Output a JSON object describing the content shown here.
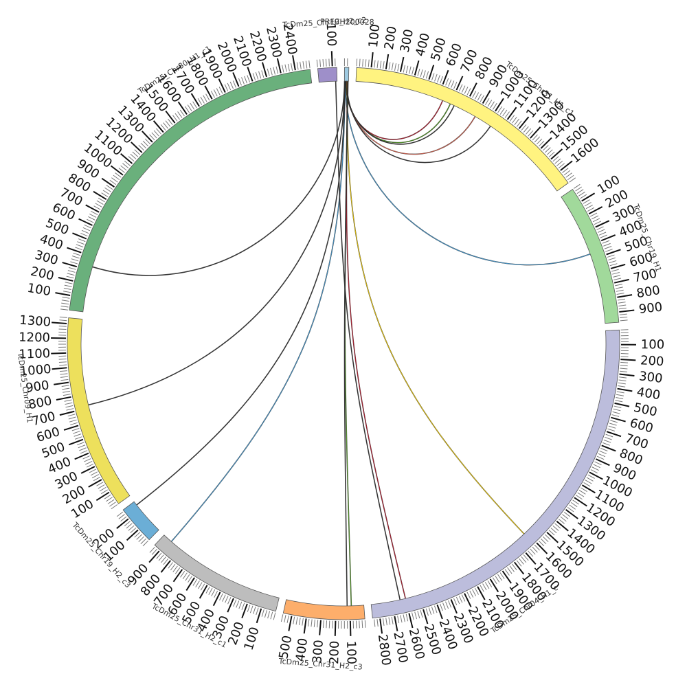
{
  "chart_data": {
    "type": "chord",
    "segments": [
      {
        "name": "PRFCH200028",
        "length": 30,
        "color": "#9ecae1",
        "tick_labels": []
      },
      {
        "name": "TcDm25_Chr31_H1_c1",
        "length": 1700,
        "color": "#fff380",
        "tick_labels": [
          "100",
          "200",
          "300",
          "400",
          "500",
          "600",
          "700",
          "800",
          "900",
          "1000",
          "1100",
          "1200",
          "1300",
          "1400",
          "1500",
          "1600"
        ]
      },
      {
        "name": "TcDm25_Chr19_H1",
        "length": 970,
        "color": "#a1d99b",
        "tick_labels": [
          "100",
          "200",
          "300",
          "400",
          "500",
          "600",
          "700",
          "800",
          "900"
        ]
      },
      {
        "name": "TcDm25_Chr04_H1_c",
        "length": 2850,
        "color": "#bcbddc",
        "tick_labels": [
          "100",
          "200",
          "300",
          "400",
          "500",
          "600",
          "700",
          "800",
          "900",
          "1000",
          "1100",
          "1200",
          "1300",
          "1400",
          "1500",
          "1600",
          "1700",
          "1800",
          "1900",
          "2000",
          "2100",
          "2200",
          "2300",
          "2400",
          "2500",
          "2600",
          "2700",
          "2800"
        ]
      },
      {
        "name": "TcDm25_Chr31_H2_c3",
        "length": 560,
        "color": "#fdae6b",
        "tick_labels": [
          "100",
          "200",
          "300",
          "400",
          "500"
        ]
      },
      {
        "name": "TcDm25_Chr31_H2_c1",
        "length": 950,
        "color": "#bdbdbd",
        "tick_labels": [
          "100",
          "200",
          "300",
          "400",
          "500",
          "600",
          "700",
          "800",
          "900"
        ]
      },
      {
        "name": "TcDm25_Chr19_H2_c3",
        "length": 270,
        "color": "#6baed6",
        "tick_labels": [
          "100",
          "200"
        ]
      },
      {
        "name": "TcDm25_Chr09_H1",
        "length": 1340,
        "color": "#ede05c",
        "tick_labels": [
          "100",
          "200",
          "300",
          "400",
          "500",
          "600",
          "700",
          "800",
          "900",
          "1000",
          "1100",
          "1200",
          "1300"
        ]
      },
      {
        "name": "TcDm25_Chr30_H1_c1",
        "length": 2500,
        "color": "#6ab07c",
        "tick_labels": [
          "100",
          "200",
          "300",
          "400",
          "500",
          "600",
          "700",
          "800",
          "900",
          "1000",
          "1100",
          "1200",
          "1300",
          "1400",
          "1500",
          "1600",
          "1700",
          "1800",
          "1900",
          "2000",
          "2100",
          "2200",
          "2300",
          "2400"
        ]
      },
      {
        "name": "TcDm25_Chr19_H2_c2",
        "length": 130,
        "color": "#9e8fc9",
        "tick_labels": [
          "100"
        ]
      }
    ],
    "links": [
      {
        "from": "PRFCH200028",
        "from_pos": 10,
        "to": "TcDm25_Chr31_H1_c1",
        "to_pos": 640,
        "color": "#b2182b"
      },
      {
        "from": "PRFCH200028",
        "from_pos": 12,
        "to": "TcDm25_Chr31_H1_c1",
        "to_pos": 700,
        "color": "#4d9221"
      },
      {
        "from": "PRFCH200028",
        "from_pos": 14,
        "to": "TcDm25_Chr31_H1_c1",
        "to_pos": 730,
        "color": "#333333"
      },
      {
        "from": "PRFCH200028",
        "from_pos": 16,
        "to": "TcDm25_Chr31_H1_c1",
        "to_pos": 900,
        "color": "#d6604d"
      },
      {
        "from": "PRFCH200028",
        "from_pos": 18,
        "to": "TcDm25_Chr31_H1_c1",
        "to_pos": 1030,
        "color": "#333333"
      },
      {
        "from": "PRFCH200028",
        "from_pos": 6,
        "to": "TcDm25_Chr19_H1",
        "to_pos": 460,
        "color": "#4292c6"
      },
      {
        "from": "PRFCH200028",
        "from_pos": 20,
        "to": "TcDm25_Chr04_H1_c",
        "to_pos": 1620,
        "color": "#e6c300"
      },
      {
        "from": "PRFCH200028",
        "from_pos": 22,
        "to": "TcDm25_Chr04_H1_c",
        "to_pos": 2600,
        "color": "#b2182b"
      },
      {
        "from": "PRFCH200028",
        "from_pos": 24,
        "to": "TcDm25_Chr31_H2_c3",
        "to_pos": 90,
        "color": "#4d9221"
      },
      {
        "from": "PRFCH200028",
        "from_pos": 26,
        "to": "TcDm25_Chr31_H2_c3",
        "to_pos": 120,
        "color": "#333333"
      },
      {
        "from": "PRFCH200028",
        "from_pos": 4,
        "to": "TcDm25_Chr31_H2_c1",
        "to_pos": 880,
        "color": "#4292c6"
      },
      {
        "from": "PRFCH200028",
        "from_pos": 3,
        "to": "TcDm25_Chr19_H2_c3",
        "to_pos": 240,
        "color": "#333333"
      },
      {
        "from": "PRFCH200028",
        "from_pos": 2,
        "to": "TcDm25_Chr09_H1",
        "to_pos": 720,
        "color": "#333333"
      },
      {
        "from": "PRFCH200028",
        "from_pos": 1,
        "to": "TcDm25_Chr30_H1_c1",
        "to_pos": 330,
        "color": "#333333"
      },
      {
        "from": "TcDm25_Chr19_H2_c2",
        "from_pos": 120,
        "to": "TcDm25_Chr04_H1_c",
        "to_pos": 2640,
        "color": "#333333"
      }
    ]
  }
}
